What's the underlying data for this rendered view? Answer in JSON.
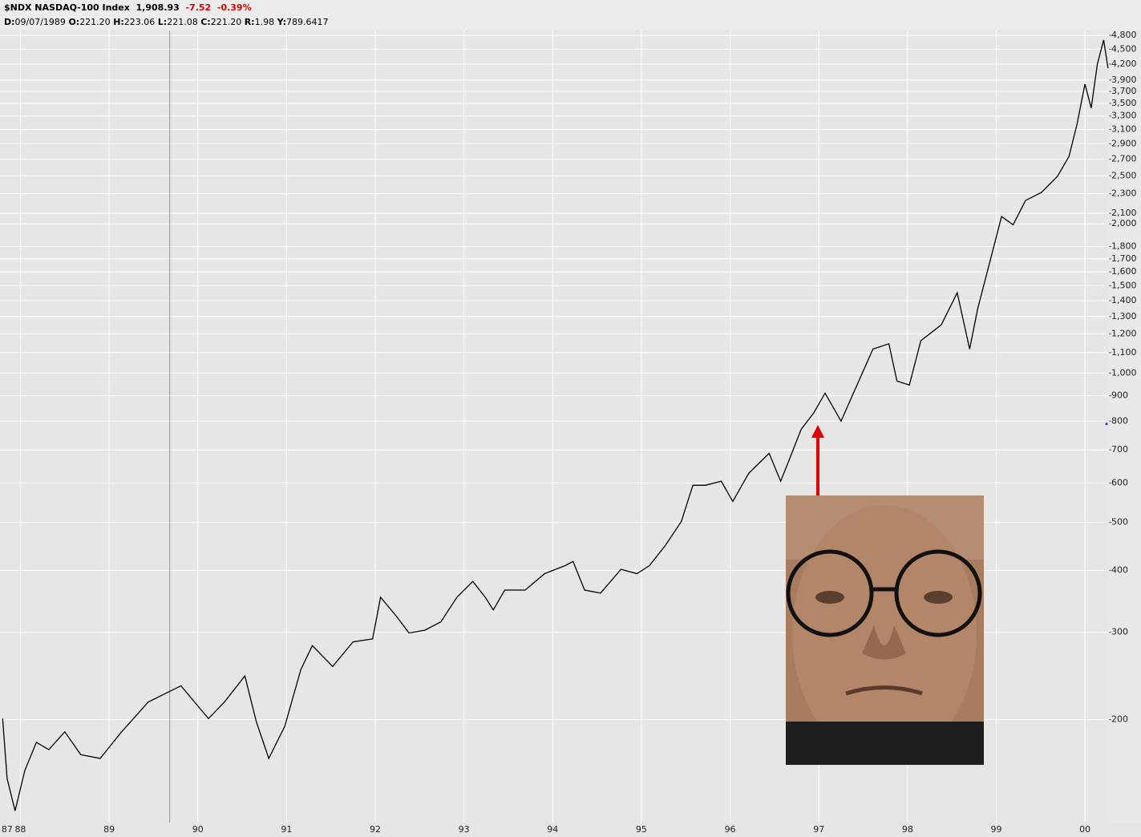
{
  "chart_data": {
    "type": "line",
    "title": "$NDX NASDAQ-100 Index",
    "last": "1,908.93",
    "change": "-7.52",
    "change_pct": "-0.39%",
    "info": [
      {
        "label": "D:",
        "value": "09/07/1989"
      },
      {
        "label": "O:",
        "value": "221.20"
      },
      {
        "label": "H:",
        "value": "223.06"
      },
      {
        "label": "L:",
        "value": "221.08"
      },
      {
        "label": "C:",
        "value": "221.20"
      },
      {
        "label": "R:",
        "value": "1.98"
      },
      {
        "label": "Y:",
        "value": "789.6417"
      }
    ],
    "log_scale": true,
    "grid": true,
    "color": "#000000",
    "xlim": [
      1987.77,
      2000.27
    ],
    "ylim": [
      124,
      4910
    ],
    "xticks": [
      {
        "value": 1987.85,
        "label": "87"
      },
      {
        "value": 1988,
        "label": "88"
      },
      {
        "value": 1989,
        "label": "89"
      },
      {
        "value": 1990,
        "label": "90"
      },
      {
        "value": 1991,
        "label": "91"
      },
      {
        "value": 1992,
        "label": "92"
      },
      {
        "value": 1993,
        "label": "93"
      },
      {
        "value": 1994,
        "label": "94"
      },
      {
        "value": 1995,
        "label": "95"
      },
      {
        "value": 1996,
        "label": "96"
      },
      {
        "value": 1997,
        "label": "97"
      },
      {
        "value": 1998,
        "label": "98"
      },
      {
        "value": 1999,
        "label": "99"
      },
      {
        "value": 2000,
        "label": "00"
      }
    ],
    "yticks": [
      {
        "value": 4800,
        "label": "4,800"
      },
      {
        "value": 4500,
        "label": "4,500"
      },
      {
        "value": 4200,
        "label": "4,200"
      },
      {
        "value": 3900,
        "label": "3,900"
      },
      {
        "value": 3700,
        "label": "3,700"
      },
      {
        "value": 3500,
        "label": "3,500"
      },
      {
        "value": 3300,
        "label": "3,300"
      },
      {
        "value": 3100,
        "label": "3,100"
      },
      {
        "value": 2900,
        "label": "2,900"
      },
      {
        "value": 2700,
        "label": "2,700"
      },
      {
        "value": 2500,
        "label": "2,500"
      },
      {
        "value": 2300,
        "label": "2,300"
      },
      {
        "value": 2100,
        "label": "2,100"
      },
      {
        "value": 2000,
        "label": "2,000"
      },
      {
        "value": 1800,
        "label": "1,800"
      },
      {
        "value": 1700,
        "label": "1,700"
      },
      {
        "value": 1600,
        "label": "1,600"
      },
      {
        "value": 1500,
        "label": "1,500"
      },
      {
        "value": 1400,
        "label": "1,400"
      },
      {
        "value": 1300,
        "label": "1,300"
      },
      {
        "value": 1200,
        "label": "1,200"
      },
      {
        "value": 1100,
        "label": "1,100"
      },
      {
        "value": 1000,
        "label": "1,000"
      },
      900,
      800,
      700,
      600,
      500,
      400,
      300,
      200
    ],
    "x": [
      1987.8,
      1987.85,
      1987.94,
      1988.05,
      1988.18,
      1988.32,
      1988.5,
      1988.68,
      1988.9,
      1989.13,
      1989.44,
      1989.81,
      1990.12,
      1990.3,
      1990.53,
      1990.66,
      1990.8,
      1990.98,
      1991.16,
      1991.29,
      1991.52,
      1991.75,
      1991.97,
      1992.06,
      1992.24,
      1992.38,
      1992.56,
      1992.74,
      1992.92,
      1993.1,
      1993.24,
      1993.33,
      1993.46,
      1993.69,
      1993.91,
      1994.14,
      1994.23,
      1994.36,
      1994.54,
      1994.77,
      1994.95,
      1995.09,
      1995.27,
      1995.45,
      1995.58,
      1995.72,
      1995.9,
      1996.03,
      1996.21,
      1996.44,
      1996.57,
      1996.66,
      1996.8,
      1996.94,
      1997.07,
      1997.25,
      1997.43,
      1997.61,
      1997.79,
      1997.88,
      1998.02,
      1998.15,
      1998.38,
      1998.56,
      1998.7,
      1998.79,
      1998.92,
      1999.06,
      1999.19,
      1999.33,
      1999.51,
      1999.69,
      1999.82,
      1999.91,
      2000.0,
      2000.07,
      2000.14,
      2000.21,
      2000.26
    ],
    "values": [
      201,
      152,
      131,
      158,
      180,
      174,
      189,
      170,
      167,
      188,
      217,
      234,
      201,
      217,
      245,
      198,
      167,
      194,
      252,
      282,
      256,
      287,
      291,
      353,
      323,
      299,
      303,
      315,
      353,
      380,
      353,
      333,
      365,
      365,
      394,
      409,
      417,
      365,
      360,
      402,
      394,
      409,
      449,
      502,
      594,
      594,
      605,
      551,
      628,
      689,
      605,
      664,
      770,
      830,
      911,
      800,
      946,
      1118,
      1146,
      964,
      946,
      1162,
      1251,
      1452,
      1118,
      1348,
      1655,
      2069,
      1991,
      2229,
      2314,
      2493,
      2736,
      3176,
      3827,
      3424,
      4200,
      4697,
      4120
    ]
  }
}
